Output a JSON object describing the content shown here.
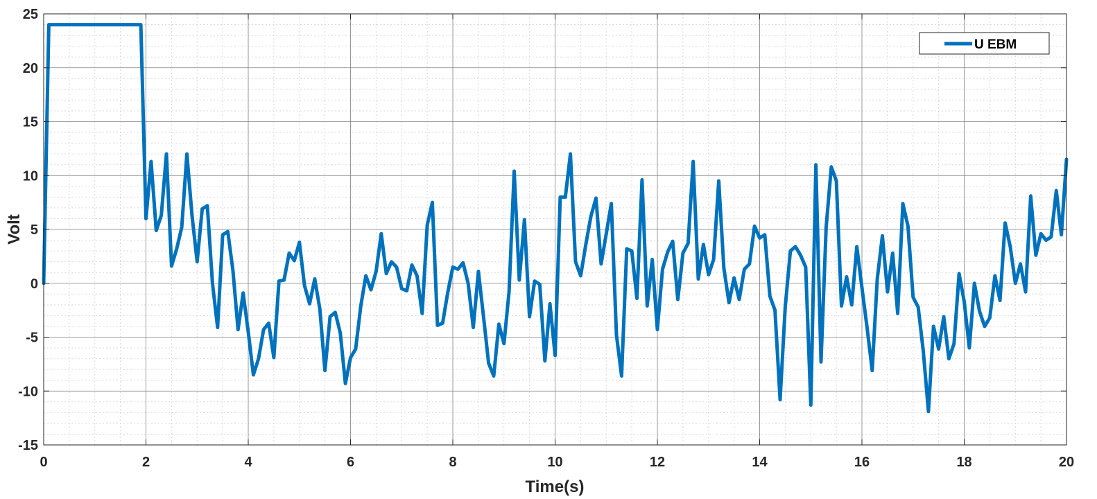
{
  "chart_data": {
    "type": "line",
    "xlabel": "Time(s)",
    "ylabel": "Volt",
    "xlim": [
      0,
      20
    ],
    "ylim": [
      -15,
      25
    ],
    "xticks": [
      0,
      2,
      4,
      6,
      8,
      10,
      12,
      14,
      16,
      18,
      20
    ],
    "yticks": [
      -15,
      -10,
      -5,
      0,
      5,
      10,
      15,
      20,
      25
    ],
    "grid": true,
    "minor_grid": true,
    "legend_position": "top-right",
    "series": [
      {
        "name": "U EBM",
        "color": "#0072bd",
        "x": [
          0,
          0.1,
          1.9,
          2.0,
          2.1,
          2.2,
          2.3,
          2.4,
          2.5,
          2.6,
          2.7,
          2.8,
          2.9,
          3.0,
          3.1,
          3.2,
          3.3,
          3.4,
          3.5,
          3.6,
          3.7,
          3.8,
          3.9,
          4.0,
          4.1,
          4.2,
          4.3,
          4.4,
          4.5,
          4.6,
          4.7,
          4.8,
          4.9,
          5.0,
          5.1,
          5.2,
          5.3,
          5.4,
          5.5,
          5.6,
          5.7,
          5.8,
          5.9,
          6.0,
          6.1,
          6.2,
          6.3,
          6.4,
          6.5,
          6.6,
          6.7,
          6.8,
          6.9,
          7.0,
          7.1,
          7.2,
          7.3,
          7.4,
          7.5,
          7.6,
          7.7,
          7.8,
          7.9,
          8.0,
          8.1,
          8.2,
          8.3,
          8.4,
          8.5,
          8.6,
          8.7,
          8.8,
          8.9,
          9.0,
          9.1,
          9.2,
          9.3,
          9.4,
          9.5,
          9.6,
          9.7,
          9.8,
          9.9,
          10.0,
          10.1,
          10.2,
          10.3,
          10.4,
          10.5,
          10.6,
          10.7,
          10.8,
          10.9,
          11.0,
          11.1,
          11.2,
          11.3,
          11.4,
          11.5,
          11.6,
          11.7,
          11.8,
          11.9,
          12.0,
          12.1,
          12.2,
          12.3,
          12.4,
          12.5,
          12.6,
          12.7,
          12.8,
          12.9,
          13.0,
          13.1,
          13.2,
          13.3,
          13.4,
          13.5,
          13.6,
          13.7,
          13.8,
          13.9,
          14.0,
          14.1,
          14.2,
          14.3,
          14.4,
          14.5,
          14.6,
          14.7,
          14.8,
          14.9,
          15.0,
          15.1,
          15.2,
          15.3,
          15.4,
          15.5,
          15.6,
          15.7,
          15.8,
          15.9,
          16.0,
          16.1,
          16.2,
          16.3,
          16.4,
          16.5,
          16.6,
          16.7,
          16.8,
          16.9,
          17.0,
          17.1,
          17.2,
          17.3,
          17.4,
          17.5,
          17.6,
          17.7,
          17.8,
          17.9,
          18.0,
          18.1,
          18.2,
          18.3,
          18.4,
          18.5,
          18.6,
          18.7,
          18.8,
          18.9,
          19.0,
          19.1,
          19.2,
          19.3,
          19.4,
          19.5,
          19.6,
          19.7,
          19.8,
          19.9,
          20.0
        ],
        "y": [
          0,
          24,
          24,
          6,
          11.3,
          4.9,
          6.3,
          12,
          1.6,
          3.2,
          5.2,
          12,
          6.3,
          2,
          6.9,
          7.2,
          0,
          -4.1,
          4.5,
          4.8,
          1.2,
          -4.3,
          -0.9,
          -4.5,
          -8.5,
          -7,
          -4.3,
          -3.7,
          -6.9,
          0.2,
          0.3,
          2.8,
          2.1,
          3.8,
          -0.2,
          -1.9,
          0.4,
          -2.4,
          -8.1,
          -3.1,
          -2.7,
          -4.6,
          -9.3,
          -6.9,
          -6.1,
          -2.1,
          0.7,
          -0.6,
          1.1,
          4.6,
          0.9,
          2,
          1.5,
          -0.5,
          -0.7,
          1.7,
          0.7,
          -2.8,
          5.4,
          7.5,
          -3.9,
          -3.7,
          -0.9,
          1.5,
          1.3,
          1.9,
          0,
          -4.1,
          1.1,
          -3.1,
          -7.4,
          -8.6,
          -3.8,
          -5.6,
          -0.8,
          10.4,
          0.3,
          5.9,
          -3.1,
          0.2,
          -0.1,
          -7.2,
          -1.9,
          -6.7,
          8,
          8,
          12,
          2,
          0.7,
          3.6,
          6.2,
          7.9,
          1.8,
          4.6,
          7.4,
          -4.8,
          -8.6,
          3.2,
          3,
          -1.4,
          9.6,
          -2.1,
          2.2,
          -4.3,
          1.3,
          2.9,
          3.9,
          -1.5,
          2.8,
          3.7,
          11.3,
          0.4,
          3.6,
          0.8,
          2.2,
          9.5,
          1.4,
          -1.8,
          0.5,
          -1.5,
          1.3,
          1.8,
          5.3,
          4.2,
          4.5,
          -1.2,
          -2.5,
          -10.8,
          -2.2,
          3,
          3.4,
          2.6,
          1.5,
          -11.3,
          11,
          -7.3,
          5.2,
          10.8,
          9.5,
          -2.1,
          0.6,
          -2,
          3.4,
          -0.4,
          -4.1,
          -8.1,
          0.4,
          4.4,
          -0.8,
          2.8,
          -2.8,
          7.4,
          5.3,
          -1.3,
          -2.2,
          -6.3,
          -11.9,
          -4,
          -6.1,
          -3.1,
          -7,
          -5.6,
          0.9,
          -1.7,
          -6,
          0,
          -2.6,
          -4,
          -3.2,
          0.7,
          -1.6,
          5.6,
          3.4,
          0,
          1.8,
          -0.8,
          8.1,
          2.6,
          4.6,
          4,
          4.3,
          8.6,
          4.5,
          11.5
        ]
      }
    ]
  }
}
